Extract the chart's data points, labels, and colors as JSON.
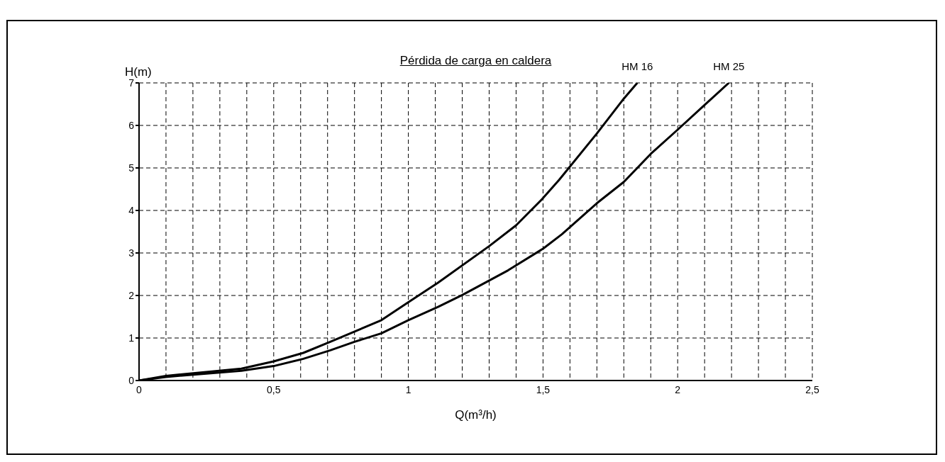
{
  "chart_data": {
    "type": "line",
    "title": "Pérdida de carga en caldera",
    "xlabel": "Q(m³/h)",
    "ylabel": "H(m)",
    "xlim": [
      0,
      2.5
    ],
    "ylim": [
      0,
      7
    ],
    "xticks": [
      0,
      {
        "value": 0.1,
        "label": null
      },
      {
        "value": 0.2,
        "label": null
      },
      {
        "value": 0.3,
        "label": null
      },
      {
        "value": 0.4,
        "label": null
      },
      {
        "value": 0.5,
        "label": "0,5"
      },
      {
        "value": 0.6,
        "label": null
      },
      {
        "value": 0.7,
        "label": null
      },
      {
        "value": 0.8,
        "label": null
      },
      {
        "value": 0.9,
        "label": null
      },
      1,
      {
        "value": 1.1,
        "label": null
      },
      {
        "value": 1.2,
        "label": null
      },
      {
        "value": 1.3,
        "label": null
      },
      {
        "value": 1.4,
        "label": null
      },
      {
        "value": 1.5,
        "label": "1,5"
      },
      {
        "value": 1.6,
        "label": null
      },
      {
        "value": 1.7,
        "label": null
      },
      {
        "value": 1.8,
        "label": null
      },
      {
        "value": 1.9,
        "label": null
      },
      2,
      {
        "value": 2.1,
        "label": null
      },
      {
        "value": 2.2,
        "label": null
      },
      {
        "value": 2.3,
        "label": null
      },
      {
        "value": 2.4,
        "label": null
      },
      {
        "value": 2.5,
        "label": "2,5"
      }
    ],
    "yticks": [
      0,
      1,
      2,
      3,
      4,
      5,
      6,
      7
    ],
    "grid": true,
    "line_style": "solid",
    "marker": "none",
    "series": [
      {
        "name": "HM 16",
        "color": "#000000",
        "x": [
          0,
          0.1,
          0.38,
          0.5,
          0.61,
          0.71,
          0.9,
          1.0,
          1.11,
          1.3,
          1.4,
          1.5,
          1.56,
          1.7,
          1.8,
          1.85
        ],
        "values": [
          0,
          0.11,
          0.28,
          0.45,
          0.65,
          0.91,
          1.42,
          1.84,
          2.3,
          3.16,
          3.65,
          4.29,
          4.72,
          5.81,
          6.63,
          7
        ]
      },
      {
        "name": "HM 25",
        "color": "#000000",
        "x": [
          0,
          0.1,
          0.38,
          0.5,
          0.61,
          0.71,
          0.8,
          0.9,
          1.0,
          1.11,
          1.2,
          1.37,
          1.5,
          1.57,
          1.7,
          1.8,
          1.9,
          2.0,
          2.1,
          2.19
        ],
        "values": [
          0,
          0.085,
          0.23,
          0.34,
          0.51,
          0.71,
          0.91,
          1.11,
          1.42,
          1.73,
          2.01,
          2.59,
          3.1,
          3.44,
          4.17,
          4.67,
          5.33,
          5.9,
          6.48,
          7
        ]
      }
    ]
  }
}
